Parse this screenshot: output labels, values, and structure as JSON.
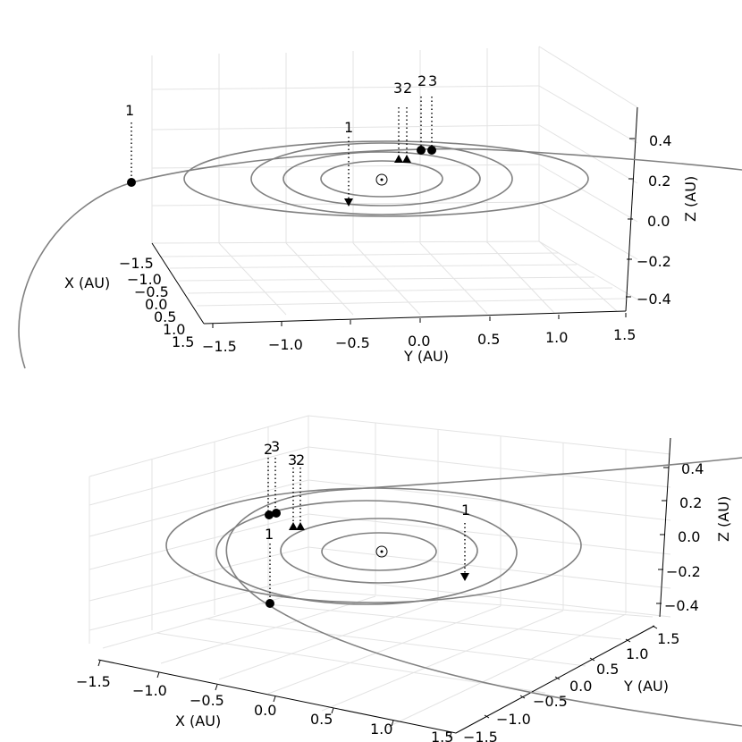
{
  "chart_data": [
    {
      "type": "3d-orbit",
      "panel": "top",
      "xlabel": "X (AU)",
      "ylabel": "Y (AU)",
      "zlabel": "Z (AU)",
      "xticks": [
        "−1.5",
        "−1.0",
        "−0.5",
        "0.0",
        "0.5",
        "1.0",
        "1.5"
      ],
      "yticks": [
        "−1.5",
        "−1.0",
        "−0.5",
        "0.0",
        "0.5",
        "1.0",
        "1.5"
      ],
      "zticks": [
        "0.4",
        "0.2",
        "0.0",
        "−0.2",
        "−0.4"
      ],
      "sun_symbol": "sun-symbol",
      "markers": [
        {
          "label": "1",
          "symbol": "circle"
        },
        {
          "label": "1",
          "symbol": "triangle-down"
        },
        {
          "label": "3",
          "symbol": "triangle-up"
        },
        {
          "label": "2",
          "symbol": "triangle-up"
        },
        {
          "label": "2",
          "symbol": "circle"
        },
        {
          "label": "3",
          "symbol": "circle"
        }
      ]
    },
    {
      "type": "3d-orbit",
      "panel": "bottom",
      "xlabel": "X (AU)",
      "ylabel": "Y (AU)",
      "zlabel": "Z (AU)",
      "xticks": [
        "−1.5",
        "−1.0",
        "−0.5",
        "0.0",
        "0.5",
        "1.0",
        "1.5"
      ],
      "yticks": [
        "−1.5",
        "−1.0",
        "−0.5",
        "0.0",
        "0.5",
        "1.0",
        "1.5"
      ],
      "zticks": [
        "0.4",
        "0.2",
        "0.0",
        "−0.2",
        "−0.4"
      ],
      "sun_symbol": "sun-symbol",
      "markers": [
        {
          "label": "2",
          "symbol": "circle"
        },
        {
          "label": "3",
          "symbol": "circle"
        },
        {
          "label": "3",
          "symbol": "triangle-up"
        },
        {
          "label": "2",
          "symbol": "triangle-up"
        },
        {
          "label": "1",
          "symbol": "triangle-down"
        },
        {
          "label": "1",
          "symbol": "circle"
        }
      ]
    }
  ],
  "colors": {
    "orbit": "#808080",
    "grid": "#e0e0e0",
    "axis": "#000000",
    "marker": "#000000"
  }
}
